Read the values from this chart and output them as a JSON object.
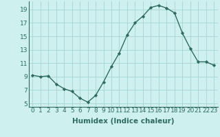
{
  "x": [
    0,
    1,
    2,
    3,
    4,
    5,
    6,
    7,
    8,
    9,
    10,
    11,
    12,
    13,
    14,
    15,
    16,
    17,
    18,
    19,
    20,
    21,
    22,
    23
  ],
  "y": [
    9.2,
    9.0,
    9.1,
    7.9,
    7.2,
    6.8,
    5.8,
    5.2,
    6.2,
    8.2,
    10.5,
    12.5,
    15.2,
    17.0,
    18.0,
    19.3,
    19.6,
    19.2,
    18.5,
    15.5,
    13.2,
    11.2,
    11.2,
    10.7
  ],
  "line_color": "#2e6b5e",
  "marker": "D",
  "marker_size": 2.2,
  "bg_color": "#cef0ee",
  "grid_color": "#aad8d4",
  "xlabel": "Humidex (Indice chaleur)",
  "ylim": [
    4.5,
    20.2
  ],
  "xlim": [
    -0.5,
    23.5
  ],
  "yticks": [
    5,
    7,
    9,
    11,
    13,
    15,
    17,
    19
  ],
  "xticks": [
    0,
    1,
    2,
    3,
    4,
    5,
    6,
    7,
    8,
    9,
    10,
    11,
    12,
    13,
    14,
    15,
    16,
    17,
    18,
    19,
    20,
    21,
    22,
    23
  ],
  "xlabel_fontsize": 7.5,
  "tick_fontsize": 6.5,
  "line_width": 1.0
}
